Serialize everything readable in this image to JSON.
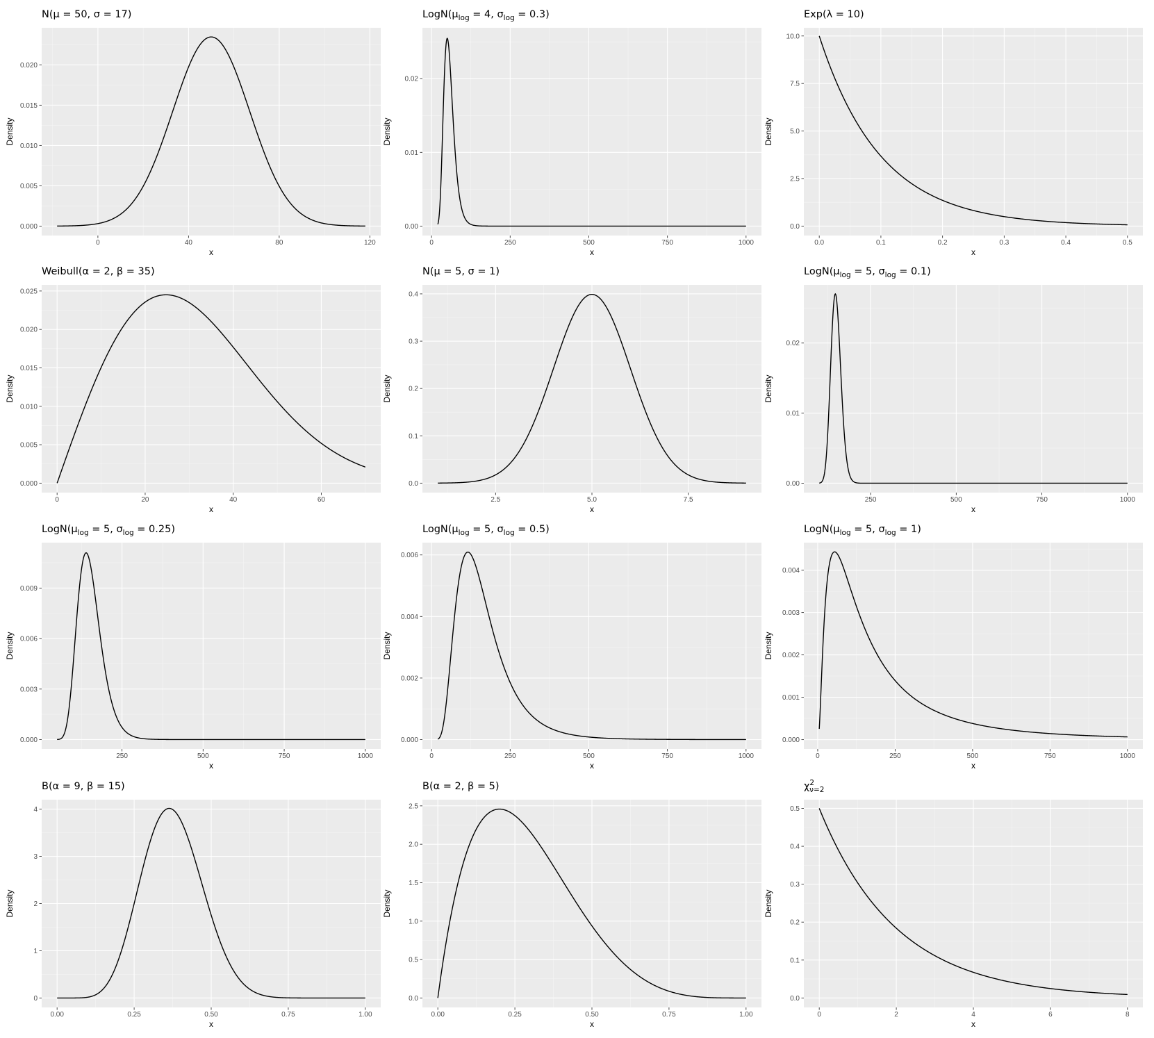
{
  "figure": {
    "background": "#ffffff",
    "panel_background": "#ebebeb",
    "grid_color": "#ffffff",
    "line_color": "#000000"
  },
  "chart_data": [
    {
      "type": "line",
      "title": "N(μ = 50, σ = 17)",
      "title_parts": [
        [
          "N(μ = 50, σ = 17)",
          ""
        ]
      ],
      "xlabel": "x",
      "ylabel": "Density",
      "dist": {
        "family": "normal",
        "mu": 50,
        "sigma": 17
      },
      "x_range": [
        -18,
        118
      ],
      "xlim": [
        -24.8,
        124.8
      ],
      "ylim": [
        -0.00117,
        0.0246
      ],
      "x_ticks": [
        0,
        40,
        80,
        120
      ],
      "x_tick_labels": [
        "0",
        "40",
        "80",
        "120"
      ],
      "y_ticks": [
        0,
        0.005,
        0.01,
        0.015,
        0.02
      ],
      "y_tick_labels": [
        "0.000",
        "0.005",
        "0.010",
        "0.015",
        "0.020"
      ],
      "grid": true
    },
    {
      "type": "line",
      "title": "LogN(μlog = 4, σlog = 0.3)",
      "title_parts": [
        [
          "LogN(μ",
          ""
        ],
        [
          "log",
          "sub"
        ],
        [
          " = 4, σ",
          ""
        ],
        [
          "log",
          "sub"
        ],
        [
          " = 0.3)",
          ""
        ]
      ],
      "xlabel": "x",
      "ylabel": "Density",
      "dist": {
        "family": "lognormal",
        "meanlog": 4,
        "sdlog": 0.3
      },
      "x_range": [
        20,
        1000
      ],
      "xlim": [
        -29,
        1049
      ],
      "ylim": [
        -0.00128,
        0.0269
      ],
      "x_ticks": [
        0,
        250,
        500,
        750,
        1000
      ],
      "x_tick_labels": [
        "0",
        "250",
        "500",
        "750",
        "1000"
      ],
      "y_ticks": [
        0,
        0.01,
        0.02
      ],
      "y_tick_labels": [
        "0.00",
        "0.01",
        "0.02"
      ],
      "grid": true
    },
    {
      "type": "line",
      "title": "Exp(λ = 10)",
      "title_parts": [
        [
          "Exp(λ = 10)",
          ""
        ]
      ],
      "xlabel": "x",
      "ylabel": "Density",
      "dist": {
        "family": "exponential",
        "rate": 10
      },
      "x_range": [
        0,
        0.5
      ],
      "xlim": [
        -0.025,
        0.525
      ],
      "ylim": [
        -0.497,
        10.43
      ],
      "x_ticks": [
        0,
        0.1,
        0.2,
        0.3,
        0.4,
        0.5
      ],
      "x_tick_labels": [
        "0.0",
        "0.1",
        "0.2",
        "0.3",
        "0.4",
        "0.5"
      ],
      "y_ticks": [
        0,
        2.5,
        5,
        7.5,
        10
      ],
      "y_tick_labels": [
        "0.0",
        "2.5",
        "5.0",
        "7.5",
        "10.0"
      ],
      "grid": true
    },
    {
      "type": "line",
      "title": "Weibull(α = 2, β = 35)",
      "title_parts": [
        [
          "Weibull(α = 2, β = 35)",
          ""
        ]
      ],
      "xlabel": "x",
      "ylabel": "Density",
      "dist": {
        "family": "weibull",
        "shape": 2,
        "scale": 35
      },
      "x_range": [
        0,
        70
      ],
      "xlim": [
        -3.5,
        73.5
      ],
      "ylim": [
        -0.00123,
        0.0258
      ],
      "x_ticks": [
        0,
        20,
        40,
        60
      ],
      "x_tick_labels": [
        "0",
        "20",
        "40",
        "60"
      ],
      "y_ticks": [
        0,
        0.005,
        0.01,
        0.015,
        0.02,
        0.025
      ],
      "y_tick_labels": [
        "0.000",
        "0.005",
        "0.010",
        "0.015",
        "0.020",
        "0.025"
      ],
      "grid": true
    },
    {
      "type": "line",
      "title": "N(μ = 5, σ = 1)",
      "title_parts": [
        [
          "N(μ = 5, σ = 1)",
          ""
        ]
      ],
      "xlabel": "x",
      "ylabel": "Density",
      "dist": {
        "family": "normal",
        "mu": 5,
        "sigma": 1
      },
      "x_range": [
        1,
        9
      ],
      "xlim": [
        0.6,
        9.4
      ],
      "ylim": [
        -0.02,
        0.419
      ],
      "x_ticks": [
        2.5,
        5,
        7.5
      ],
      "x_tick_labels": [
        "2.5",
        "5.0",
        "7.5"
      ],
      "y_ticks": [
        0,
        0.1,
        0.2,
        0.3,
        0.4
      ],
      "y_tick_labels": [
        "0.0",
        "0.1",
        "0.2",
        "0.3",
        "0.4"
      ],
      "grid": true
    },
    {
      "type": "line",
      "title": "LogN(μlog = 5, σlog = 0.1)",
      "title_parts": [
        [
          "LogN(μ",
          ""
        ],
        [
          "log",
          "sub"
        ],
        [
          " = 5, σ",
          ""
        ],
        [
          "log",
          "sub"
        ],
        [
          " = 0.1)",
          ""
        ]
      ],
      "xlabel": "x",
      "ylabel": "Density",
      "dist": {
        "family": "lognormal",
        "meanlog": 5,
        "sdlog": 0.1
      },
      "x_range": [
        100,
        1000
      ],
      "xlim": [
        55,
        1045
      ],
      "ylim": [
        -0.00134,
        0.0283
      ],
      "x_ticks": [
        250,
        500,
        750,
        1000
      ],
      "x_tick_labels": [
        "250",
        "500",
        "750",
        "1000"
      ],
      "y_ticks": [
        0,
        0.01,
        0.02
      ],
      "y_tick_labels": [
        "0.00",
        "0.01",
        "0.02"
      ],
      "grid": true
    },
    {
      "type": "line",
      "title": "LogN(μlog = 5, σlog = 0.25)",
      "title_parts": [
        [
          "LogN(μ",
          ""
        ],
        [
          "log",
          "sub"
        ],
        [
          " = 5, σ",
          ""
        ],
        [
          "log",
          "sub"
        ],
        [
          " = 0.25)",
          ""
        ]
      ],
      "xlabel": "x",
      "ylabel": "Density",
      "dist": {
        "family": "lognormal",
        "meanlog": 5,
        "sdlog": 0.25
      },
      "x_range": [
        50,
        1000
      ],
      "xlim": [
        2.5,
        1047.5
      ],
      "ylim": [
        -0.00056,
        0.0117
      ],
      "x_ticks": [
        250,
        500,
        750,
        1000
      ],
      "x_tick_labels": [
        "250",
        "500",
        "750",
        "1000"
      ],
      "y_ticks": [
        0,
        0.003,
        0.006,
        0.009
      ],
      "y_tick_labels": [
        "0.000",
        "0.003",
        "0.006",
        "0.009"
      ],
      "grid": true
    },
    {
      "type": "line",
      "title": "LogN(μlog = 5, σlog = 0.5)",
      "title_parts": [
        [
          "LogN(μ",
          ""
        ],
        [
          "log",
          "sub"
        ],
        [
          " = 5, σ",
          ""
        ],
        [
          "log",
          "sub"
        ],
        [
          " = 0.5)",
          ""
        ]
      ],
      "xlabel": "x",
      "ylabel": "Density",
      "dist": {
        "family": "lognormal",
        "meanlog": 5,
        "sdlog": 0.5
      },
      "x_range": [
        20,
        1000
      ],
      "xlim": [
        -29,
        1049
      ],
      "ylim": [
        -0.000305,
        0.0064
      ],
      "x_ticks": [
        0,
        250,
        500,
        750,
        1000
      ],
      "x_tick_labels": [
        "0",
        "250",
        "500",
        "750",
        "1000"
      ],
      "y_ticks": [
        0,
        0.002,
        0.004,
        0.006
      ],
      "y_tick_labels": [
        "0.000",
        "0.002",
        "0.004",
        "0.006"
      ],
      "grid": true
    },
    {
      "type": "line",
      "title": "LogN(μlog = 5, σlog = 1)",
      "title_parts": [
        [
          "LogN(μ",
          ""
        ],
        [
          "log",
          "sub"
        ],
        [
          " = 5, σ",
          ""
        ],
        [
          "log",
          "sub"
        ],
        [
          " = 1)",
          ""
        ]
      ],
      "xlabel": "x",
      "ylabel": "Density",
      "dist": {
        "family": "lognormal",
        "meanlog": 5,
        "sdlog": 1
      },
      "x_range": [
        5,
        1000
      ],
      "xlim": [
        -44.75,
        1049.75
      ],
      "ylim": [
        -0.00022,
        0.00465
      ],
      "x_ticks": [
        0,
        250,
        500,
        750,
        1000
      ],
      "x_tick_labels": [
        "0",
        "250",
        "500",
        "750",
        "1000"
      ],
      "y_ticks": [
        0,
        0.001,
        0.002,
        0.003,
        0.004
      ],
      "y_tick_labels": [
        "0.000",
        "0.001",
        "0.002",
        "0.003",
        "0.004"
      ],
      "grid": true
    },
    {
      "type": "line",
      "title": "B(α = 9, β = 15)",
      "title_parts": [
        [
          "B(α = 9, β = 15)",
          ""
        ]
      ],
      "xlabel": "x",
      "ylabel": "Density",
      "dist": {
        "family": "beta",
        "a": 9,
        "b": 15
      },
      "x_range": [
        0,
        1
      ],
      "xlim": [
        -0.05,
        1.05
      ],
      "ylim": [
        -0.2,
        4.2
      ],
      "x_ticks": [
        0,
        0.25,
        0.5,
        0.75,
        1
      ],
      "x_tick_labels": [
        "0.00",
        "0.25",
        "0.50",
        "0.75",
        "1.00"
      ],
      "y_ticks": [
        0,
        1,
        2,
        3,
        4
      ],
      "y_tick_labels": [
        "0",
        "1",
        "2",
        "3",
        "4"
      ],
      "grid": true
    },
    {
      "type": "line",
      "title": "B(α = 2, β = 5)",
      "title_parts": [
        [
          "B(α = 2, β = 5)",
          ""
        ]
      ],
      "xlabel": "x",
      "ylabel": "Density",
      "dist": {
        "family": "beta",
        "a": 2,
        "b": 5
      },
      "x_range": [
        0,
        1
      ],
      "xlim": [
        -0.05,
        1.05
      ],
      "ylim": [
        -0.123,
        2.58
      ],
      "x_ticks": [
        0,
        0.25,
        0.5,
        0.75,
        1
      ],
      "x_tick_labels": [
        "0.00",
        "0.25",
        "0.50",
        "0.75",
        "1.00"
      ],
      "y_ticks": [
        0,
        0.5,
        1,
        1.5,
        2,
        2.5
      ],
      "y_tick_labels": [
        "0.0",
        "0.5",
        "1.0",
        "1.5",
        "2.0",
        "2.5"
      ],
      "grid": true
    },
    {
      "type": "line",
      "title": "χ2ν=2",
      "title_parts": [
        [
          "χ",
          ""
        ],
        [
          "2",
          "sup"
        ],
        [
          "ν=2",
          "sub"
        ]
      ],
      "xlabel": "x",
      "ylabel": "Density",
      "dist": {
        "family": "chisq",
        "df": 2
      },
      "x_range": [
        0,
        8
      ],
      "xlim": [
        -0.4,
        8.4
      ],
      "ylim": [
        -0.0249,
        0.5228
      ],
      "x_ticks": [
        0,
        2,
        4,
        6,
        8
      ],
      "x_tick_labels": [
        "0",
        "2",
        "4",
        "6",
        "8"
      ],
      "y_ticks": [
        0,
        0.1,
        0.2,
        0.3,
        0.4,
        0.5
      ],
      "y_tick_labels": [
        "0.0",
        "0.1",
        "0.2",
        "0.3",
        "0.4",
        "0.5"
      ],
      "grid": true
    }
  ]
}
